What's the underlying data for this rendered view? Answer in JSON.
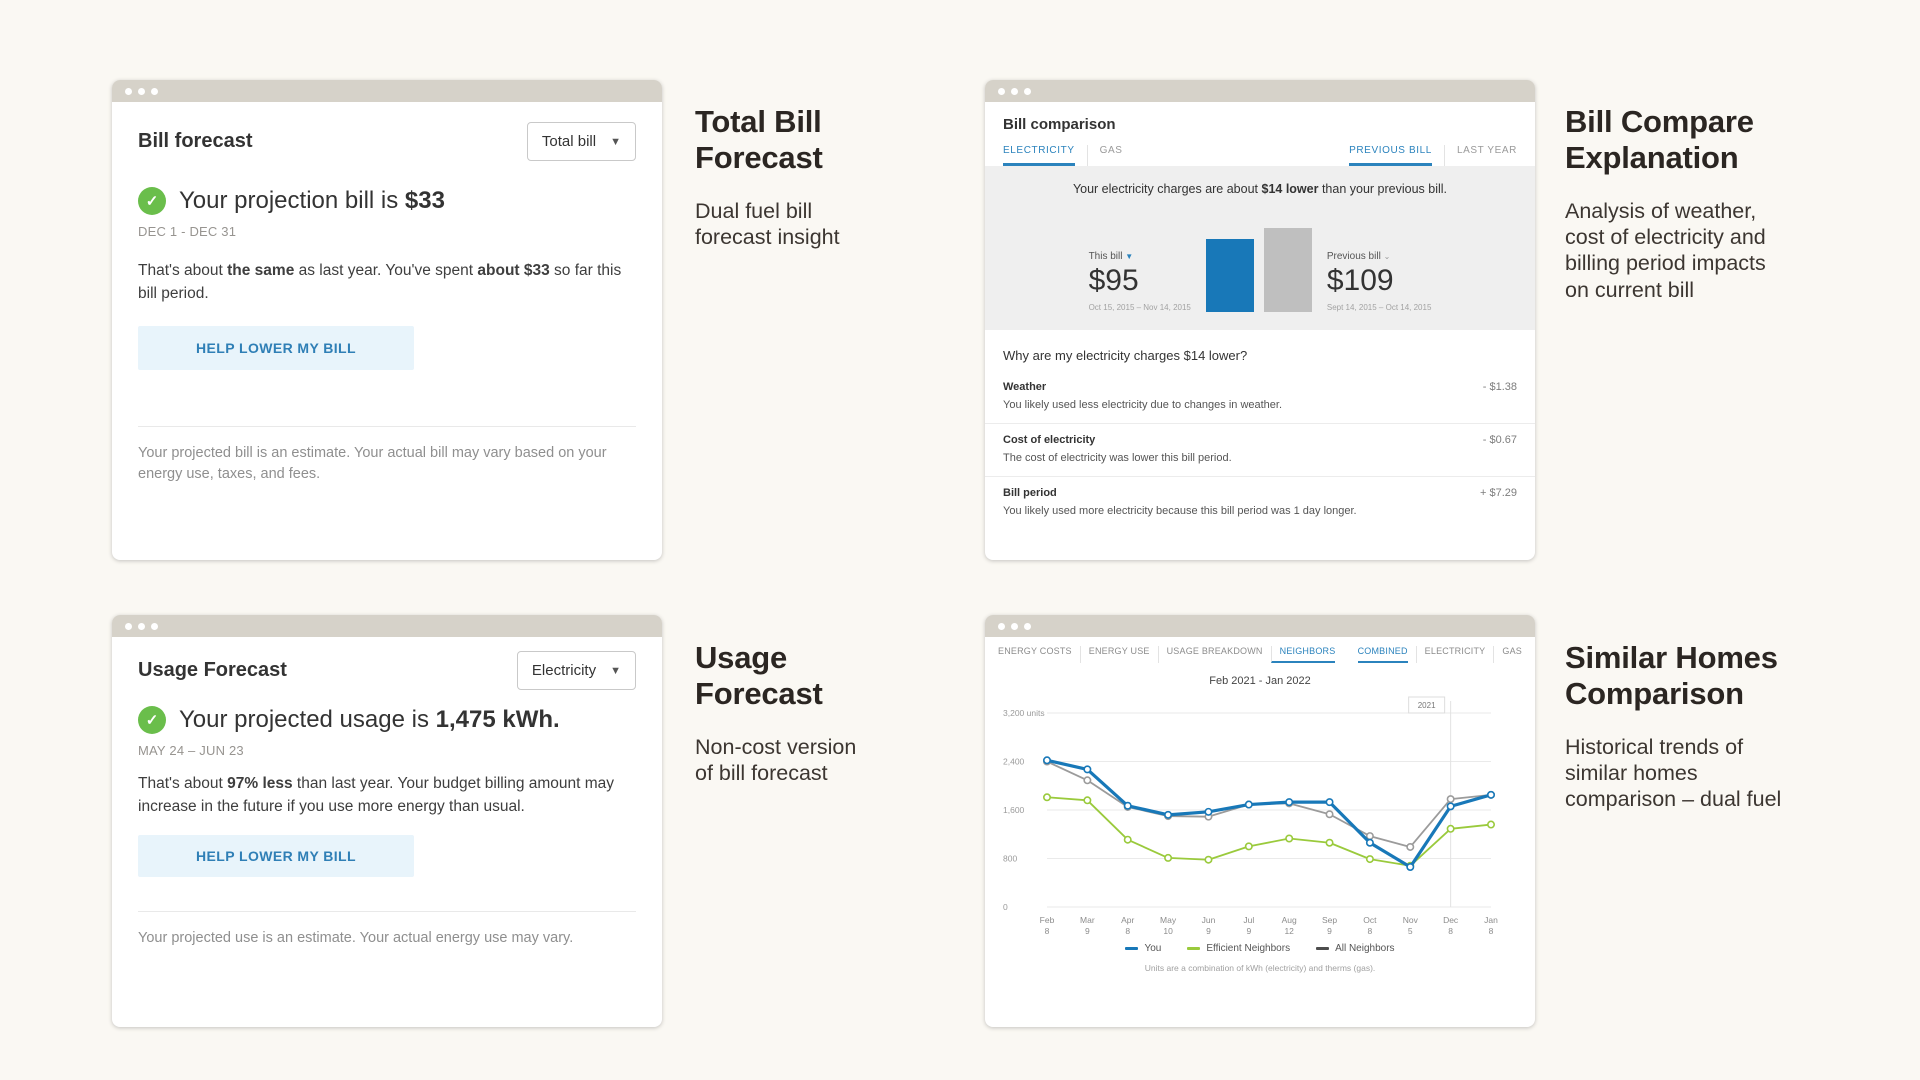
{
  "cards": {
    "bill_forecast": {
      "title": "Bill forecast",
      "dropdown_label": "Total bill",
      "headline_prefix": "Your projection bill is ",
      "headline_value": "$33",
      "period": "DEC 1 - DEC 31",
      "body": [
        "That's about ",
        "the same",
        " as last year. You've spent ",
        "about $33",
        " so far this bill period."
      ],
      "button_label": "HELP LOWER MY BILL",
      "disclaimer": "Your projected bill is an estimate. Your actual bill may vary based on your energy use, taxes, and fees."
    },
    "bill_comparison": {
      "title": "Bill comparison",
      "fuel_tabs": [
        {
          "label": "ELECTRICITY"
        },
        {
          "label": "GAS"
        }
      ],
      "compare_tabs": [
        {
          "label": "PREVIOUS BILL"
        },
        {
          "label": "LAST YEAR"
        }
      ],
      "banner": [
        "Your electricity charges are about ",
        "$14 lower",
        " than your previous bill."
      ],
      "question": "Why are my electricity charges $14 lower?",
      "factors": [
        {
          "name": "Weather",
          "amount": "- $1.38",
          "desc": "You likely used less electricity due to changes in weather."
        },
        {
          "name": "Cost of electricity",
          "amount": "- $0.67",
          "desc": "The cost of electricity was lower this bill period."
        },
        {
          "name": "Bill period",
          "amount": "+ $7.29",
          "desc": "You likely used more electricity because this bill period was 1 day longer."
        }
      ]
    },
    "usage_forecast": {
      "title": "Usage Forecast",
      "dropdown_label": "Electricity",
      "headline_prefix": "Your projected usage is ",
      "headline_value": "1,475 kWh.",
      "period": "MAY 24 – JUN 23",
      "body": [
        "That's about ",
        "97% less",
        " than last year. Your budget billing amount may increase in the future if you use more energy than usual."
      ],
      "button_label": "HELP LOWER MY BILL",
      "disclaimer": "Your projected use is an estimate. Your actual energy use may vary."
    },
    "neighbors": {
      "nav_tabs": [
        {
          "label": "ENERGY COSTS"
        },
        {
          "label": "ENERGY USE"
        },
        {
          "label": "USAGE BREAKDOWN"
        },
        {
          "label": "NEIGHBORS"
        }
      ],
      "view_tabs": [
        {
          "label": "COMBINED"
        },
        {
          "label": "ELECTRICITY"
        },
        {
          "label": "GAS"
        }
      ]
    }
  },
  "captions": {
    "total_bill_forecast": {
      "heading": "Total Bill Forecast",
      "sub": "Dual fuel bill forecast insight"
    },
    "bill_compare": {
      "heading": "Bill Compare Explanation",
      "sub": "Analysis of weather, cost of electricity and billing period impacts on current bill"
    },
    "usage_forecast": {
      "heading": "Usage Forecast",
      "sub": "Non-cost version of bill forecast"
    },
    "similar_homes": {
      "heading": "Similar Homes Comparison",
      "sub": "Historical trends of similar homes comparison – dual fuel"
    }
  },
  "colors": {
    "accent_blue": "#2b83bd",
    "bar_blue": "#1878b8",
    "bar_gray": "#bfbfbf",
    "check_green": "#6abe4b"
  },
  "chart_data": [
    {
      "type": "bar",
      "title": "Your electricity charges are about $14 lower than your previous bill.",
      "categories": [
        "This bill",
        "Previous bill"
      ],
      "values": [
        95,
        109
      ],
      "labels": [
        "$95",
        "$109"
      ],
      "periods": [
        "Oct 15, 2015 – Nov 14, 2015",
        "Sept 14, 2015 – Oct 14, 2015"
      ],
      "colors": [
        "#1878b8",
        "#bfbfbf"
      ],
      "ylim": [
        0,
        109
      ]
    },
    {
      "type": "line",
      "title": "Feb 2021 - Jan 2022",
      "categories": [
        "Feb",
        "Mar",
        "Apr",
        "May",
        "Jun",
        "Jul",
        "Aug",
        "Sep",
        "Oct",
        "Nov",
        "Dec",
        "Jan"
      ],
      "x_sub": [
        "8",
        "9",
        "8",
        "10",
        "9",
        "9",
        "12",
        "9",
        "8",
        "5",
        "8",
        "8"
      ],
      "ylim": [
        0,
        3200
      ],
      "yticks": [
        0,
        800,
        1600,
        2400,
        3200
      ],
      "ytick_labels": [
        "0",
        "800",
        "1,600",
        "2,400",
        "3,200 units"
      ],
      "grid": true,
      "legend_position": "bottom",
      "annotation": {
        "label": "2021",
        "x_index": 10
      },
      "series": [
        {
          "name": "You",
          "color": "#1878b8",
          "values": [
            2420,
            2270,
            1670,
            1520,
            1570,
            1690,
            1730,
            1730,
            1060,
            660,
            1660,
            1850
          ]
        },
        {
          "name": "Efficient Neighbors",
          "color": "#9aca3c",
          "values": [
            1810,
            1760,
            1110,
            810,
            780,
            1000,
            1130,
            1060,
            790,
            680,
            1290,
            1360
          ]
        },
        {
          "name": "All Neighbors",
          "color": "#9b9b9b",
          "legend_color": "#4d4d4d",
          "values": [
            2400,
            2090,
            1650,
            1500,
            1490,
            1690,
            1710,
            1530,
            1170,
            990,
            1780,
            1850
          ]
        }
      ],
      "footnote": "Units are a combination of kWh (electricity) and therms (gas)."
    }
  ]
}
